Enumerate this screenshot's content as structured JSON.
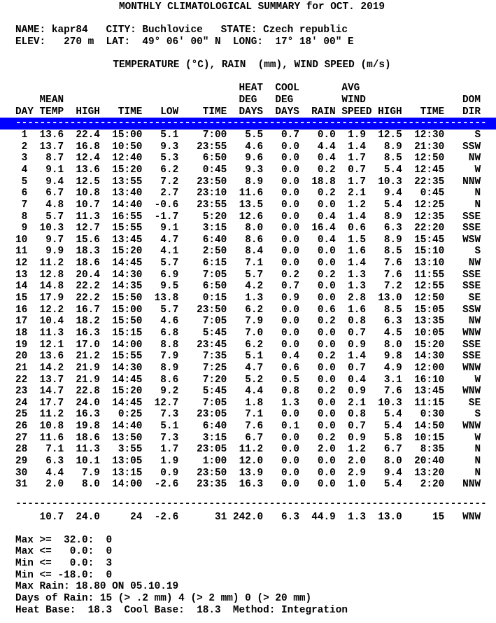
{
  "title": "MONTHLY CLIMATOLOGICAL SUMMARY for OCT. 2019",
  "station": {
    "name_line": "NAME: kapr84   CITY: Buchlovice   STATE: Czech republic",
    "elev_line": "ELEV:   270 m  LAT:  49° 06' 00\" N  LONG:  17° 18' 00\" E"
  },
  "units_line": "TEMPERATURE (°C), RAIN  (mm), WIND SPEED (m/s)",
  "colors": {
    "highlight": "#0000ff",
    "text": "#000000",
    "background": "#ffffff"
  },
  "separator": "------------------------------------------------------------------------------",
  "table": {
    "header_lines": [
      "                                     HEAT  COOL       AVG",
      "    MEAN                             DEG   DEG        WIND                DOM",
      "DAY TEMP  HIGH   TIME   LOW    TIME  DAYS  DAYS  RAIN SPEED HIGH   TIME   DIR"
    ],
    "columns": [
      "DAY",
      "MEAN TEMP",
      "HIGH",
      "TIME",
      "LOW",
      "TIME",
      "HEAT DEG DAYS",
      "COOL DEG DAYS",
      "RAIN",
      "AVG WIND SPEED",
      "HIGH",
      "TIME",
      "DOM DIR"
    ],
    "rows": [
      [
        "1",
        "13.6",
        "22.4",
        "15:00",
        "5.1",
        "7:00",
        "5.5",
        "0.7",
        "0.0",
        "1.9",
        "12.5",
        "12:30",
        "S"
      ],
      [
        "2",
        "13.7",
        "16.8",
        "10:50",
        "9.3",
        "23:55",
        "4.6",
        "0.0",
        "4.4",
        "1.4",
        "8.9",
        "21:30",
        "SSW"
      ],
      [
        "3",
        "8.7",
        "12.4",
        "12:40",
        "5.3",
        "6:50",
        "9.6",
        "0.0",
        "0.4",
        "1.7",
        "8.5",
        "12:50",
        "NW"
      ],
      [
        "4",
        "9.1",
        "13.6",
        "15:20",
        "6.2",
        "0:45",
        "9.3",
        "0.0",
        "0.2",
        "0.7",
        "5.4",
        "12:45",
        "W"
      ],
      [
        "5",
        "9.4",
        "12.5",
        "13:55",
        "7.2",
        "23:50",
        "8.9",
        "0.0",
        "18.8",
        "1.7",
        "10.3",
        "22:35",
        "NNW"
      ],
      [
        "6",
        "6.7",
        "10.8",
        "13:40",
        "2.7",
        "23:10",
        "11.6",
        "0.0",
        "0.2",
        "2.1",
        "9.4",
        "0:45",
        "N"
      ],
      [
        "7",
        "4.8",
        "10.7",
        "14:40",
        "-0.6",
        "23:55",
        "13.5",
        "0.0",
        "0.0",
        "1.2",
        "5.4",
        "12:25",
        "N"
      ],
      [
        "8",
        "5.7",
        "11.3",
        "16:55",
        "-1.7",
        "5:20",
        "12.6",
        "0.0",
        "0.4",
        "1.4",
        "8.9",
        "12:35",
        "SSE"
      ],
      [
        "9",
        "10.3",
        "12.7",
        "15:55",
        "9.1",
        "3:15",
        "8.0",
        "0.0",
        "16.4",
        "0.6",
        "6.3",
        "22:20",
        "SSE"
      ],
      [
        "10",
        "9.7",
        "15.6",
        "13:45",
        "4.7",
        "6:40",
        "8.6",
        "0.0",
        "0.4",
        "1.5",
        "8.9",
        "15:45",
        "WSW"
      ],
      [
        "11",
        "9.9",
        "18.3",
        "15:20",
        "4.1",
        "2:50",
        "8.4",
        "0.0",
        "0.0",
        "1.6",
        "8.5",
        "15:10",
        "S"
      ],
      [
        "12",
        "11.2",
        "18.6",
        "14:45",
        "5.7",
        "6:15",
        "7.1",
        "0.0",
        "0.0",
        "1.4",
        "7.6",
        "13:10",
        "NW"
      ],
      [
        "13",
        "12.8",
        "20.4",
        "14:30",
        "6.9",
        "7:05",
        "5.7",
        "0.2",
        "0.2",
        "1.3",
        "7.6",
        "11:55",
        "SSE"
      ],
      [
        "14",
        "14.8",
        "22.2",
        "14:35",
        "9.5",
        "6:50",
        "4.2",
        "0.7",
        "0.0",
        "1.3",
        "7.2",
        "12:55",
        "SSE"
      ],
      [
        "15",
        "17.9",
        "22.2",
        "15:50",
        "13.8",
        "0:15",
        "1.3",
        "0.9",
        "0.0",
        "2.8",
        "13.0",
        "12:50",
        "SE"
      ],
      [
        "16",
        "12.2",
        "16.7",
        "15:00",
        "5.7",
        "23:50",
        "6.2",
        "0.0",
        "0.6",
        "1.6",
        "8.5",
        "15:05",
        "SSW"
      ],
      [
        "17",
        "10.4",
        "18.2",
        "15:50",
        "4.6",
        "7:05",
        "7.9",
        "0.0",
        "0.2",
        "0.8",
        "6.3",
        "13:35",
        "NW"
      ],
      [
        "18",
        "11.3",
        "16.3",
        "15:15",
        "6.8",
        "5:45",
        "7.0",
        "0.0",
        "0.0",
        "0.7",
        "4.5",
        "10:05",
        "WNW"
      ],
      [
        "19",
        "12.1",
        "17.0",
        "14:00",
        "8.8",
        "23:45",
        "6.2",
        "0.0",
        "0.0",
        "0.9",
        "8.0",
        "15:20",
        "SSE"
      ],
      [
        "20",
        "13.6",
        "21.2",
        "15:55",
        "7.9",
        "7:35",
        "5.1",
        "0.4",
        "0.2",
        "1.4",
        "9.8",
        "14:30",
        "SSE"
      ],
      [
        "21",
        "14.2",
        "21.9",
        "14:30",
        "8.9",
        "7:25",
        "4.7",
        "0.6",
        "0.0",
        "0.7",
        "4.9",
        "12:00",
        "WNW"
      ],
      [
        "22",
        "13.7",
        "21.9",
        "14:45",
        "8.6",
        "7:20",
        "5.2",
        "0.5",
        "0.0",
        "0.4",
        "3.1",
        "16:10",
        "W"
      ],
      [
        "23",
        "14.7",
        "22.8",
        "15:20",
        "9.2",
        "5:45",
        "4.4",
        "0.8",
        "0.2",
        "0.9",
        "7.6",
        "13:45",
        "WNW"
      ],
      [
        "24",
        "17.7",
        "24.0",
        "14:45",
        "12.7",
        "7:05",
        "1.8",
        "1.3",
        "0.0",
        "2.1",
        "10.3",
        "11:15",
        "SE"
      ],
      [
        "25",
        "11.2",
        "16.3",
        "0:25",
        "7.3",
        "23:05",
        "7.1",
        "0.0",
        "0.0",
        "0.8",
        "5.4",
        "0:30",
        "S"
      ],
      [
        "26",
        "10.8",
        "19.8",
        "14:40",
        "5.1",
        "6:40",
        "7.6",
        "0.1",
        "0.0",
        "0.7",
        "5.4",
        "14:50",
        "WNW"
      ],
      [
        "27",
        "11.6",
        "18.6",
        "13:50",
        "7.3",
        "3:15",
        "6.7",
        "0.0",
        "0.2",
        "0.9",
        "5.8",
        "10:15",
        "W"
      ],
      [
        "28",
        "7.1",
        "11.3",
        "3:55",
        "1.7",
        "23:05",
        "11.2",
        "0.0",
        "2.0",
        "1.2",
        "6.7",
        "8:35",
        "N"
      ],
      [
        "29",
        "6.3",
        "10.1",
        "13:05",
        "1.9",
        "1:00",
        "12.0",
        "0.0",
        "0.0",
        "2.0",
        "8.0",
        "20:40",
        "N"
      ],
      [
        "30",
        "4.4",
        "7.9",
        "13:15",
        "0.9",
        "23:50",
        "13.9",
        "0.0",
        "0.0",
        "2.9",
        "9.4",
        "13:20",
        "N"
      ],
      [
        "31",
        "2.0",
        "8.0",
        "14:00",
        "-2.6",
        "23:35",
        "16.3",
        "0.0",
        "0.0",
        "1.0",
        "5.4",
        "2:20",
        "NNW"
      ]
    ],
    "summary": [
      "",
      "10.7",
      "24.0",
      "24",
      "-2.6",
      "31",
      "242.0",
      "6.3",
      "44.9",
      "1.3",
      "13.0",
      "15",
      "WNW"
    ]
  },
  "footer_lines": [
    "Max >=  32.0:  0",
    "Max <=   0.0:  0",
    "Min <=   0.0:  3",
    "Min <= -18.0:  0",
    "Max Rain: 18.80 ON 05.10.19",
    "Days of Rain: 15 (> .2 mm) 4 (> 2 mm) 0 (> 20 mm)",
    "Heat Base:  18.3  Cool Base:  18.3  Method: Integration"
  ]
}
